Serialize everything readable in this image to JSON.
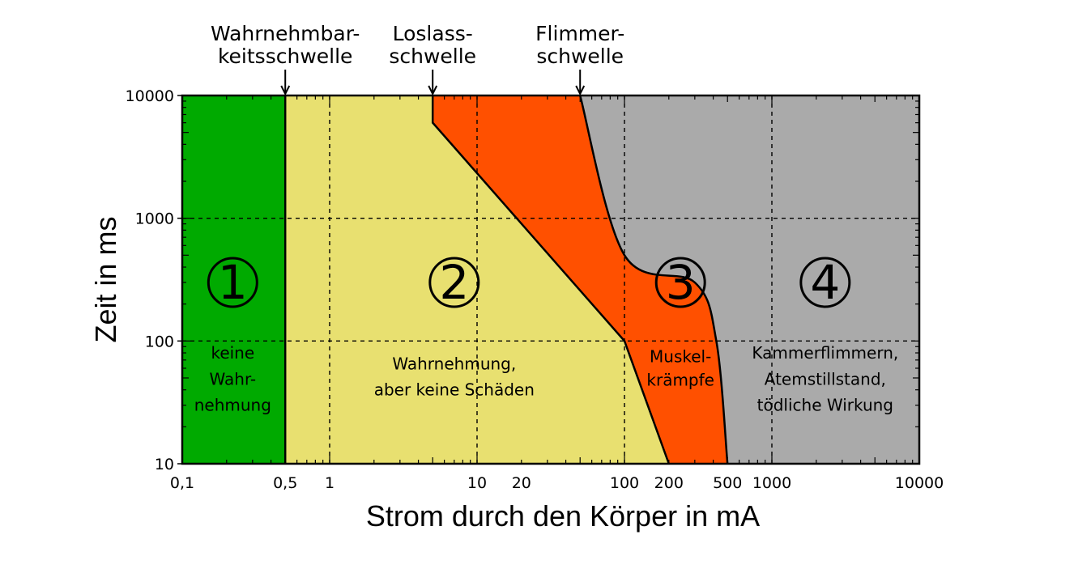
{
  "chart_data": {
    "type": "area",
    "xlabel": "Strom durch den Körper in mA",
    "ylabel": "Zeit in ms",
    "xscale": "log",
    "yscale": "log",
    "xlim": [
      0.1,
      10000
    ],
    "ylim": [
      10,
      10000
    ],
    "x_tick_labels": [
      "0,1",
      "0,5",
      "1",
      "10",
      "20",
      "100",
      "200",
      "500",
      "1000",
      "10000"
    ],
    "x_tick_values": [
      0.1,
      0.5,
      1,
      10,
      20,
      100,
      200,
      500,
      1000,
      10000
    ],
    "y_tick_labels": [
      "10",
      "100",
      "1000",
      "10000"
    ],
    "y_tick_values": [
      10,
      100,
      1000,
      10000
    ],
    "grid": "dashed, x at 1, 10, 100, 1000; y at 100, 1000",
    "thresholds": [
      {
        "label": [
          "Wahrnehmbar-",
          "keitsschwelle"
        ],
        "x": 0.5
      },
      {
        "label": [
          "Loslass-",
          "schwelle"
        ],
        "x": 5
      },
      {
        "label": [
          "Flimmer-",
          "schwelle"
        ],
        "x": 50
      }
    ],
    "boundaries": {
      "perception": [
        [
          0.5,
          10
        ],
        [
          0.5,
          10000
        ]
      ],
      "let_go": [
        [
          200,
          10
        ],
        [
          100,
          100
        ],
        [
          5,
          6000
        ],
        [
          5,
          10000
        ]
      ],
      "fibrillation": [
        [
          500,
          10
        ],
        [
          420,
          100
        ],
        [
          300,
          300
        ],
        [
          100,
          500
        ],
        [
          50,
          10000
        ]
      ]
    },
    "zones": [
      {
        "number": "1",
        "color": "#00AA00",
        "description": [
          "keine",
          "Wahr-",
          "nehmung"
        ],
        "label_x": 0.22,
        "label_y": 300,
        "desc_x": 0.22,
        "desc_y": [
          80,
          49,
          30
        ]
      },
      {
        "number": "2",
        "color": "#E8E070",
        "description": [
          "Wahrnehmung,",
          "aber keine Schäden"
        ],
        "label_x": 7,
        "label_y": 300,
        "desc_x": 7,
        "desc_y": [
          65,
          40
        ]
      },
      {
        "number": "3",
        "color": "#FF5000",
        "description": [
          "Muskel-",
          "krämpfe"
        ],
        "label_x": 240,
        "label_y": 300,
        "desc_x": 240,
        "desc_y": [
          75,
          48
        ]
      },
      {
        "number": "4",
        "color": "#AAAAAA",
        "description": [
          "Kammerflimmern,",
          "Atemstillstand,",
          "tödliche Wirkung"
        ],
        "label_x": 2300,
        "label_y": 300,
        "desc_x": 2300,
        "desc_y": [
          80,
          49,
          30
        ]
      }
    ]
  }
}
